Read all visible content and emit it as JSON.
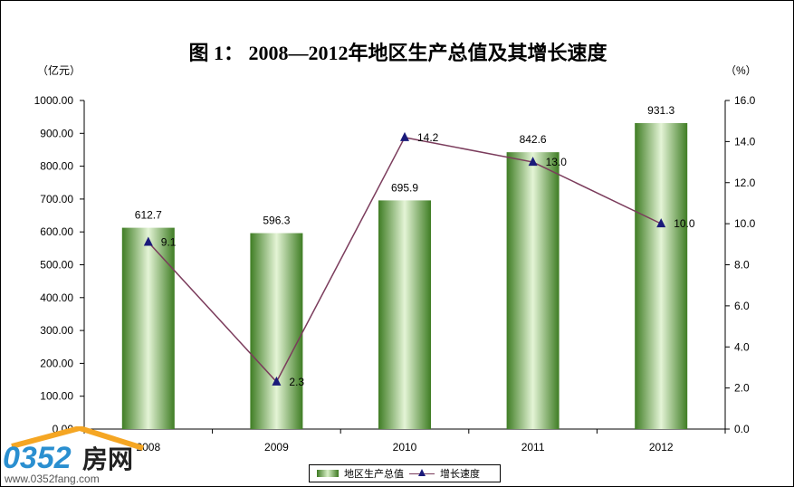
{
  "title": "图  1：  2008—2012年地区生产总值及其增长速度",
  "left_unit": "（亿元）",
  "right_unit": "（%）",
  "watermark": {
    "brand": "0352房网",
    "url": "www.0352fang.com"
  },
  "chart_data": {
    "type": "bar+line",
    "categories": [
      "2008",
      "2009",
      "2010",
      "2011",
      "2012"
    ],
    "series": [
      {
        "name": "地区生产总值",
        "type": "bar",
        "axis": "left",
        "values": [
          612.7,
          596.3,
          695.9,
          842.6,
          931.3
        ],
        "labels": [
          "612.7",
          "596.3",
          "695.9",
          "842.6",
          "931.3"
        ],
        "color": "#5a9a3a"
      },
      {
        "name": "增长速度",
        "type": "line",
        "axis": "right",
        "values": [
          9.1,
          2.3,
          14.2,
          13.0,
          10.0
        ],
        "labels": [
          "9.1",
          "2.3",
          "14.2",
          "13.0",
          "10.0"
        ],
        "color": "#7b3c5c",
        "marker_color": "#1a1a7a"
      }
    ],
    "y_left": {
      "min": 0,
      "max": 1000,
      "ticks": [
        "0.00",
        "100.00",
        "200.00",
        "300.00",
        "400.00",
        "500.00",
        "600.00",
        "700.00",
        "800.00",
        "900.00",
        "1000.00"
      ]
    },
    "y_right": {
      "min": 0,
      "max": 16,
      "ticks": [
        "0.0",
        "2.0",
        "4.0",
        "6.0",
        "8.0",
        "10.0",
        "12.0",
        "14.0",
        "16.0"
      ]
    },
    "grid": false,
    "legend": "bottom"
  }
}
